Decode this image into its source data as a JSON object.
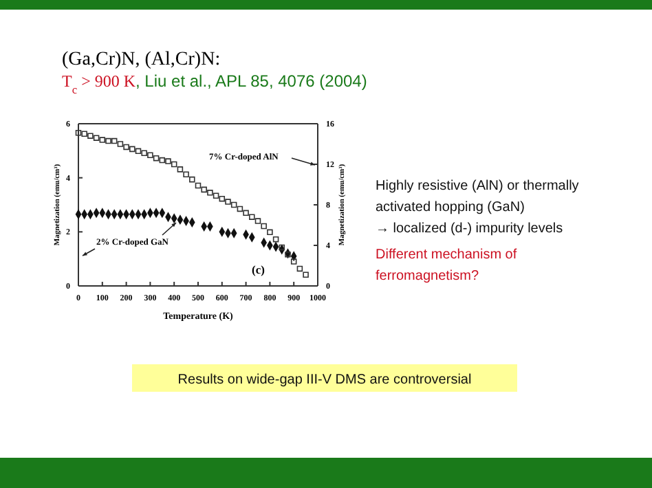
{
  "chart_data": {
    "type": "scatter",
    "title": "(Ga,Cr)N, (Al,Cr)N:",
    "subtitle": "T$_{c}$ > 900 K, Liu et al., APL 85, 4076 (2004)",
    "xlabel": "Temperature (K)",
    "ylabel": "Magnetization (emu/cm³)",
    "y2label": "Magnetization (emu/cm³)",
    "xlim": [
      0,
      1000
    ],
    "xticks": [
      0,
      100,
      200,
      300,
      400,
      500,
      600,
      700,
      800,
      900,
      1000
    ],
    "ylim": [
      0,
      6
    ],
    "yticks": [
      0,
      2,
      4,
      6
    ],
    "y2lim": [
      0,
      16
    ],
    "y2ticks": [
      0,
      4,
      8,
      12,
      16
    ],
    "grid": false,
    "series": [
      {
        "color": "#333333",
        "axis": "y2",
        "marker": "square",
        "x": [
          0,
          25,
          50,
          75,
          100,
          125,
          150,
          175,
          200,
          225,
          250,
          275,
          300,
          325,
          350,
          375,
          400,
          425,
          450,
          475,
          500,
          525,
          550,
          575,
          600,
          625,
          650,
          675,
          700,
          725,
          750,
          775,
          800,
          825,
          850,
          875,
          900,
          925,
          950
        ],
        "values": [
          15.1,
          15.0,
          14.8,
          14.6,
          14.4,
          14.3,
          14.3,
          14.0,
          13.7,
          13.5,
          13.3,
          13.1,
          12.9,
          12.6,
          12.4,
          12.3,
          12.0,
          11.5,
          11.0,
          10.5,
          9.9,
          9.5,
          9.2,
          8.9,
          8.6,
          8.3,
          8.0,
          7.6,
          7.2,
          6.8,
          6.4,
          5.9,
          5.3,
          4.6,
          3.8,
          3.1,
          2.4,
          1.7,
          1.1
        ]
      },
      {
        "color": "#111111",
        "axis": "y",
        "marker": "diamond",
        "x": [
          0,
          25,
          50,
          75,
          100,
          125,
          150,
          175,
          200,
          225,
          250,
          275,
          300,
          325,
          350,
          375,
          400,
          425,
          450,
          475,
          525,
          550,
          600,
          625,
          650,
          700,
          725,
          775,
          800,
          825,
          850,
          875,
          900
        ],
        "values": [
          2.65,
          2.65,
          2.65,
          2.7,
          2.7,
          2.65,
          2.65,
          2.65,
          2.65,
          2.65,
          2.65,
          2.65,
          2.7,
          2.7,
          2.7,
          2.55,
          2.5,
          2.45,
          2.4,
          2.35,
          2.2,
          2.2,
          2.0,
          1.95,
          1.95,
          1.9,
          1.8,
          1.6,
          1.5,
          1.45,
          1.35,
          1.2,
          1.1
        ]
      }
    ],
    "annotations": [
      "7% Cr-doped AlN",
      "2% Cr-doped GaN",
      "(c)",
      "Highly resistive (AlN) or thermally\nactivated hopping (GaN)\n→ localized (d-) impurity levels",
      "Different mechanism of\nferromagnetism?",
      "Results on wide-gap III-V DMS are controversial"
    ]
  }
}
